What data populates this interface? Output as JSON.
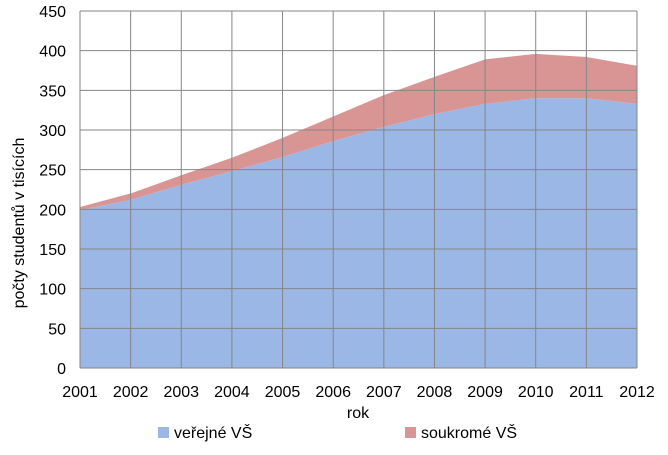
{
  "chart_data": {
    "type": "area",
    "stacked": true,
    "title": "",
    "xlabel": "rok",
    "ylabel": "počty studentů v tisících",
    "x": [
      2001,
      2002,
      2003,
      2004,
      2005,
      2006,
      2007,
      2008,
      2009,
      2010,
      2011,
      2012
    ],
    "ylim": [
      0,
      450
    ],
    "yticks": [
      0,
      50,
      100,
      150,
      200,
      250,
      300,
      350,
      400,
      450
    ],
    "grid": true,
    "legend_position": "bottom",
    "series": [
      {
        "name": "veřejné VŠ",
        "color": "#9bb7e5",
        "values": [
          199,
          212,
          231,
          248,
          266,
          286,
          304,
          320,
          333,
          340,
          340,
          333
        ]
      },
      {
        "name": "soukromé VŠ",
        "color": "#d99594",
        "values": [
          4,
          8,
          12,
          17,
          24,
          31,
          40,
          47,
          56,
          56,
          52,
          48
        ]
      }
    ]
  }
}
